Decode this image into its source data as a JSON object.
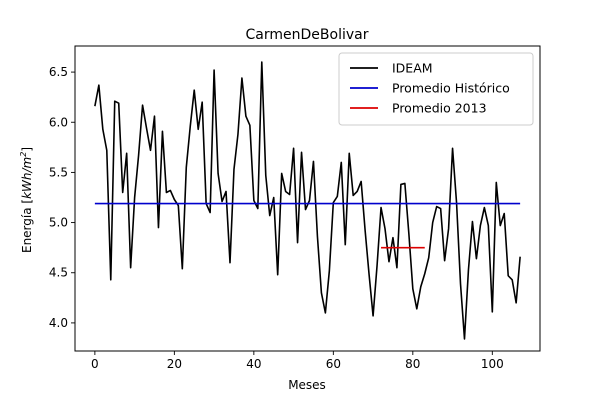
{
  "chart_data": {
    "type": "line",
    "title": "CarmenDeBolivar",
    "xlabel": "Meses",
    "ylabel": "Energía [kWh/m²]",
    "ylabel_parts": {
      "prefix": "Energía [",
      "unit": "kWh/m",
      "superscript": "2",
      "suffix": "]"
    },
    "xlim": [
      -5,
      112
    ],
    "ylim": [
      3.72,
      6.76
    ],
    "x_ticks": [
      0,
      20,
      40,
      60,
      80,
      100
    ],
    "y_ticks": [
      4.0,
      4.5,
      5.0,
      5.5,
      6.0,
      6.5
    ],
    "x_tick_labels": [
      "0",
      "20",
      "40",
      "60",
      "80",
      "100"
    ],
    "y_tick_labels": [
      "4.0",
      "4.5",
      "5.0",
      "5.5",
      "6.0",
      "6.5"
    ],
    "grid": false,
    "legend_position": "top-right",
    "series": [
      {
        "name": "IDEAM",
        "color": "#000000",
        "x": [
          0,
          1,
          2,
          3,
          4,
          5,
          6,
          7,
          8,
          9,
          10,
          11,
          12,
          13,
          14,
          15,
          16,
          17,
          18,
          19,
          20,
          21,
          22,
          23,
          24,
          25,
          26,
          27,
          28,
          29,
          30,
          31,
          32,
          33,
          34,
          35,
          36,
          37,
          38,
          39,
          40,
          41,
          42,
          43,
          44,
          45,
          46,
          47,
          48,
          49,
          50,
          51,
          52,
          53,
          54,
          55,
          56,
          57,
          58,
          59,
          60,
          61,
          62,
          63,
          64,
          65,
          66,
          67,
          68,
          69,
          70,
          71,
          72,
          73,
          74,
          75,
          76,
          77,
          78,
          79,
          80,
          81,
          82,
          83,
          84,
          85,
          86,
          87,
          88,
          89,
          90,
          91,
          92,
          93,
          94,
          95,
          96,
          97,
          98,
          99,
          100,
          101,
          102,
          103,
          104,
          105,
          106,
          107
        ],
        "y": [
          6.16,
          6.37,
          5.93,
          5.72,
          4.43,
          6.21,
          6.19,
          5.3,
          5.69,
          4.55,
          5.25,
          5.67,
          6.17,
          5.94,
          5.72,
          6.06,
          4.95,
          5.91,
          5.3,
          5.32,
          5.23,
          5.17,
          4.54,
          5.55,
          5.96,
          6.32,
          5.93,
          6.2,
          5.19,
          5.1,
          6.52,
          5.49,
          5.21,
          5.31,
          4.6,
          5.53,
          5.88,
          6.44,
          6.06,
          5.97,
          5.22,
          5.14,
          6.6,
          5.47,
          5.07,
          5.25,
          4.48,
          5.49,
          5.31,
          5.28,
          5.74,
          4.8,
          5.7,
          5.13,
          5.22,
          5.61,
          4.86,
          4.3,
          4.1,
          4.52,
          5.2,
          5.26,
          5.6,
          4.78,
          5.69,
          5.27,
          5.31,
          5.41,
          4.92,
          4.48,
          4.07,
          4.57,
          5.15,
          4.94,
          4.61,
          4.85,
          4.55,
          5.38,
          5.39,
          4.89,
          4.34,
          4.14,
          4.36,
          4.49,
          4.65,
          5.0,
          5.16,
          5.14,
          4.62,
          4.94,
          5.74,
          5.2,
          4.39,
          3.84,
          4.53,
          5.01,
          4.64,
          4.97,
          5.15,
          4.97,
          4.11,
          5.4,
          4.97,
          5.09,
          4.47,
          4.43,
          4.2,
          4.66
        ]
      },
      {
        "name": "Promedio Histórico",
        "color": "#0000cc",
        "x": [
          0,
          107
        ],
        "y": [
          5.19,
          5.19
        ]
      },
      {
        "name": "Promedio 2013",
        "color": "#dd0000",
        "x": [
          72,
          83
        ],
        "y": [
          4.75,
          4.75
        ]
      }
    ]
  }
}
